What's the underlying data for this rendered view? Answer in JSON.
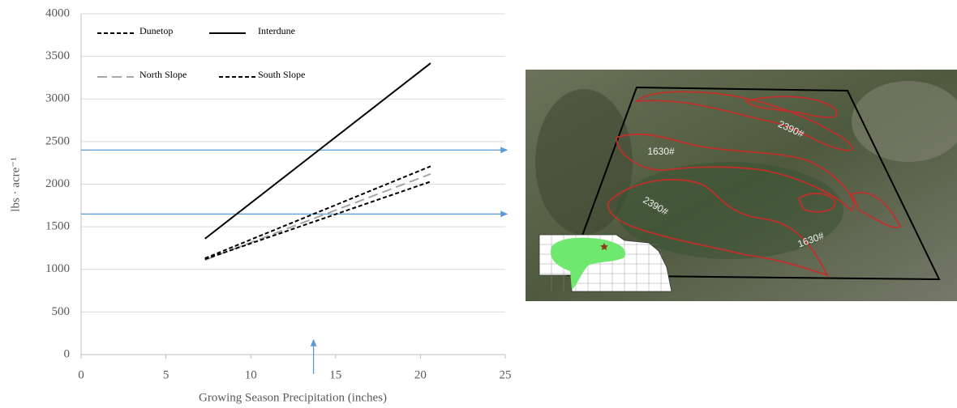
{
  "chart_data": {
    "type": "line",
    "x_label": "Growing Season Precipitation (inches)",
    "y_label": "lbs · acre⁻¹",
    "x": [
      7.3,
      20.6
    ],
    "series": [
      {
        "name": "Dunetop",
        "color": "#000000",
        "dash": "short",
        "values": [
          1130,
          2210
        ]
      },
      {
        "name": "Interdune",
        "color": "#000000",
        "dash": "solid",
        "values": [
          1360,
          3420
        ]
      },
      {
        "name": "North Slope",
        "color": "#a6a6a6",
        "dash": "long",
        "values": [
          1110,
          2120
        ]
      },
      {
        "name": "South Slope",
        "color": "#000000",
        "dash": "short",
        "values": [
          1120,
          2030
        ]
      }
    ],
    "xlim": [
      0,
      25
    ],
    "xticks": [
      0,
      5,
      10,
      15,
      20,
      25
    ],
    "ylim": [
      0,
      4000
    ],
    "yticks": [
      0,
      500,
      1000,
      1500,
      2000,
      2500,
      3000,
      3500,
      4000
    ],
    "grid": true,
    "reference_lines": {
      "color": "#5b9bd5",
      "y": [
        2400,
        1650
      ],
      "x": [
        13.7
      ]
    }
  },
  "image": {
    "labels": [
      "2390#",
      "1630#",
      "2390#",
      "1630#"
    ]
  }
}
